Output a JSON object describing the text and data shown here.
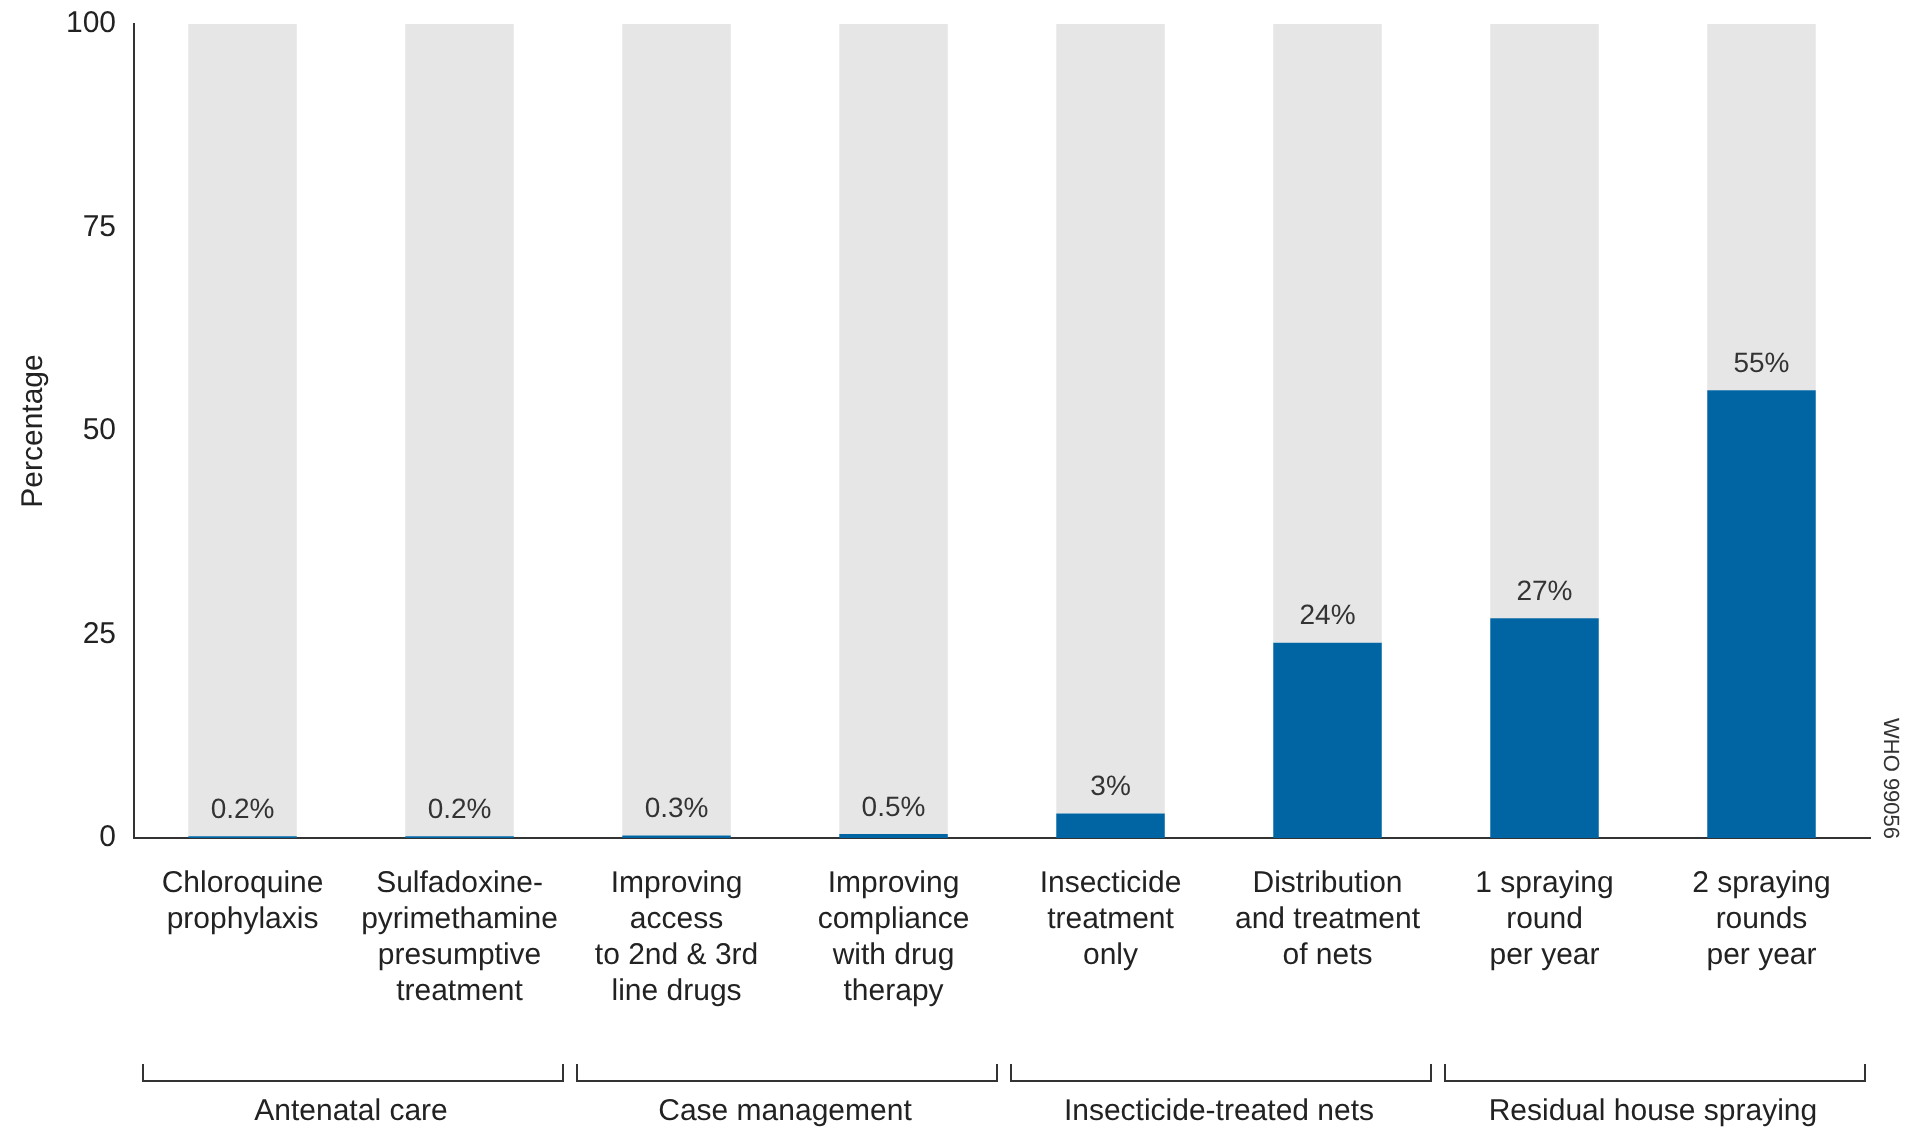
{
  "chart_data": {
    "type": "bar",
    "ylabel": "Percentage",
    "categories": [
      "Chloroquine\nprophylaxis",
      "Sulfadoxine-\npyrimethamine\npresumptive\ntreatment",
      "Improving\naccess\nto 2nd & 3rd\nline drugs",
      "Improving\ncompliance\nwith drug\ntherapy",
      "Insecticide\ntreatment\nonly",
      "Distribution\nand treatment\nof nets",
      "1 spraying\nround\nper year",
      "2 spraying\nrounds\nper year"
    ],
    "series": [
      {
        "color": "#0065a2",
        "values": [
          0.2,
          0.2,
          0.3,
          0.5,
          3,
          24,
          27,
          55
        ],
        "value_labels": [
          "0.2%",
          "0.2%",
          "0.3%",
          "0.5%",
          "3%",
          "24%",
          "27%",
          "55%"
        ]
      },
      {
        "color": "#e6e6e7",
        "values": [
          99.8,
          99.8,
          99.7,
          99.5,
          97,
          76,
          73,
          45
        ]
      }
    ],
    "stacked": true,
    "ylim": [
      0,
      100
    ],
    "yticks": [
      0,
      25,
      50,
      75,
      100
    ],
    "grid": false,
    "legend": false,
    "annotations": [
      "Antenatal care",
      "Case management",
      "Insecticide-treated nets",
      "Residual house spraying",
      "WHO 99056"
    ]
  }
}
